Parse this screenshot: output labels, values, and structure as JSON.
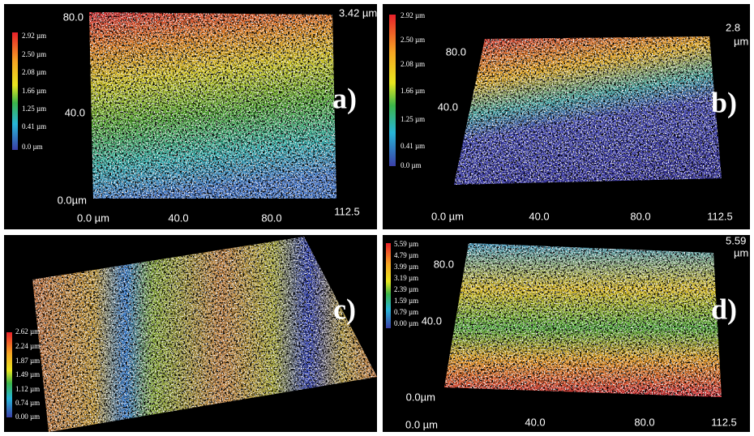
{
  "panels": [
    {
      "label": "a)",
      "legend": [
        "2.92 µm",
        "2.50 µm",
        "2.08 µm",
        "1.66 µm",
        "1.25 µm",
        "0.41 µm",
        "0.0 µm"
      ],
      "axis": [
        "80.0",
        "40.0",
        "0.0µm",
        "0.0 µm",
        "40.0",
        "80.0",
        "112.5",
        "3.42 µm"
      ]
    },
    {
      "label": "b)",
      "legend": [
        "2.92 µm",
        "2.50 µm",
        "2.08 µm",
        "1.66 µm",
        "1.25 µm",
        "0.41 µm",
        "0.0 µm"
      ],
      "axis": [
        "80.0",
        "40.0",
        "0.0 µm",
        "40.0",
        "80.0",
        "112.5",
        "2.8",
        "µm"
      ]
    },
    {
      "label": "c)",
      "legend": [
        "2.62 µm",
        "2.24 µm",
        "1.87 µm",
        "1.49 µm",
        "1.12 µm",
        "0.74 µm",
        "0.00 µm"
      ],
      "axis": []
    },
    {
      "label": "d)",
      "legend": [
        "5.59 µm",
        "4.79 µm",
        "3.99 µm",
        "3.19 µm",
        "2.39 µm",
        "1.59 µm",
        "0.79 µm",
        "0.00 µm"
      ],
      "axis": [
        "80.0",
        "40.0",
        "0.0µm",
        "0.0 µm",
        "40.0",
        "80.0",
        "112.5",
        "5.59",
        "µm"
      ]
    }
  ]
}
